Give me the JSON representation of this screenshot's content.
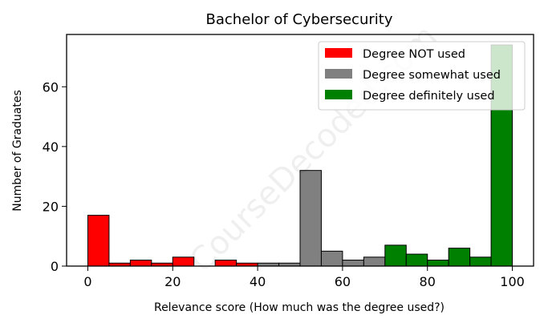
{
  "chart_data": {
    "type": "bar",
    "title": "Bachelor of Cybersecurity",
    "xlabel": "Relevance score (How much was the degree used?)",
    "ylabel": "Number of Graduates",
    "xlim": [
      -5,
      105
    ],
    "ylim": [
      0,
      77.5
    ],
    "xticks": [
      0,
      20,
      40,
      60,
      80,
      100
    ],
    "yticks": [
      0,
      20,
      40,
      60
    ],
    "bin_width": 5,
    "grid": false,
    "legend_position": "top-right",
    "watermark": "CourseDecoded.com",
    "series": [
      {
        "name": "Degree NOT used",
        "color": "#ff0000",
        "bins": [
          {
            "x": 0,
            "value": 17
          },
          {
            "x": 5,
            "value": 1
          },
          {
            "x": 10,
            "value": 2
          },
          {
            "x": 15,
            "value": 1
          },
          {
            "x": 20,
            "value": 3
          },
          {
            "x": 25,
            "value": 0
          },
          {
            "x": 30,
            "value": 2
          },
          {
            "x": 35,
            "value": 1
          }
        ]
      },
      {
        "name": "Degree somewhat used",
        "color": "#808080",
        "bins": [
          {
            "x": 40,
            "value": 1
          },
          {
            "x": 45,
            "value": 1
          },
          {
            "x": 50,
            "value": 32
          },
          {
            "x": 55,
            "value": 5
          },
          {
            "x": 60,
            "value": 2
          },
          {
            "x": 65,
            "value": 3
          }
        ]
      },
      {
        "name": "Degree definitely used",
        "color": "#008000",
        "bins": [
          {
            "x": 70,
            "value": 7
          },
          {
            "x": 75,
            "value": 4
          },
          {
            "x": 80,
            "value": 2
          },
          {
            "x": 85,
            "value": 6
          },
          {
            "x": 90,
            "value": 3
          },
          {
            "x": 95,
            "value": 74
          }
        ]
      }
    ]
  }
}
